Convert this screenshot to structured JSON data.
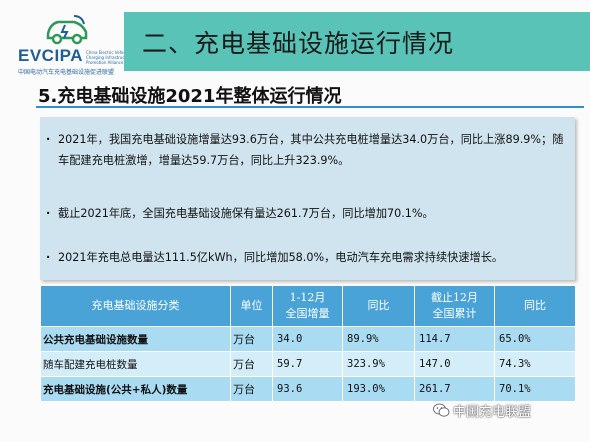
{
  "logo": {
    "name": "EVCIPA",
    "small_lines": "China Electric Vehicle\nCharging Infrastructure\nPromotion Alliance",
    "subtitle": "中国电动汽车充电基础设施促进联盟"
  },
  "header": {
    "section_title": "二、充电基础设施运行情况"
  },
  "subtitle": "5.充电基础设施2021年整体运行情况",
  "bullets": [
    "2021年，我国充电基础设施增量达93.6万台，其中公共充电桩增量达34.0万台，同比上涨89.9%；随车配建充电桩激增，增量达59.7万台，同比上升323.9%。",
    "截止2021年底，全国充电基础设施保有量达261.7万台，同比增加70.1%。",
    "2021年充电总电量达111.5亿kWh，同比增加58.0%，电动汽车充电需求持续快速增长。"
  ],
  "table": {
    "headers": {
      "category": "充电基础设施分类",
      "unit": "单位",
      "period_l1": "1-12月",
      "period_l2": "全国增量",
      "yoy1": "同比",
      "cum_l1": "截止12月",
      "cum_l2": "全国累计",
      "yoy2": "同比"
    },
    "rows": [
      {
        "name": "公共充电基础设施数量",
        "unit": "万台",
        "increase": "34.0",
        "yoy1": "89.9%",
        "total": "114.7",
        "yoy2": "65.0%"
      },
      {
        "name": "随车配建充电桩数量",
        "unit": "万台",
        "increase": "59.7",
        "yoy1": "323.9%",
        "total": "147.0",
        "yoy2": "74.3%"
      },
      {
        "name": "充电基础设施(公共+私人)数量",
        "unit": "万台",
        "increase": "93.6",
        "yoy1": "193.0%",
        "total": "261.7",
        "yoy2": "70.1%"
      }
    ]
  },
  "watermark": "中国充电联盟",
  "colors": {
    "title_band": "#5ac3b7",
    "panel": "#cfe4ef",
    "table_header": "#4aa3d6",
    "table_row": "#a9dcf2",
    "logo_blue": "#1f5f99"
  }
}
